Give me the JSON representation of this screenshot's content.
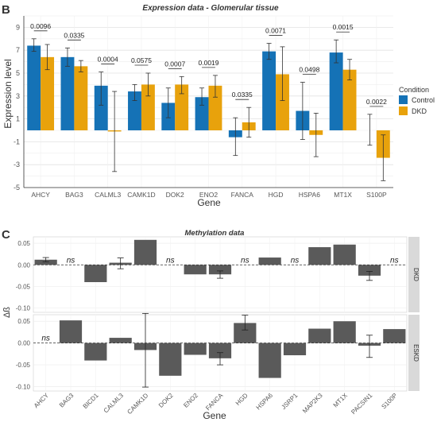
{
  "panels": {
    "b": {
      "letter": "B"
    },
    "c": {
      "letter": "C"
    }
  },
  "legend": {
    "title": "Condition",
    "items": [
      {
        "label": "Control",
        "color": "#1572B6"
      },
      {
        "label": "DKD",
        "color": "#E8A20C"
      }
    ]
  },
  "chart_data": [
    {
      "type": "bar",
      "title": "Expression data - Glomerular tissue",
      "xlabel": "Gene",
      "ylabel": "Expression level",
      "categories": [
        "AHCY",
        "BAG3",
        "CALML3",
        "CAMK1D",
        "DOK2",
        "ENO2",
        "FANCA",
        "HGD",
        "HSPA6",
        "MT1X",
        "S100P"
      ],
      "series": [
        {
          "name": "Control",
          "color": "#1572B6",
          "values": [
            7.4,
            6.4,
            3.9,
            3.4,
            2.4,
            2.9,
            -0.6,
            6.9,
            1.7,
            6.8,
            0
          ],
          "err_low": [
            6.9,
            5.6,
            2.2,
            2.6,
            1.1,
            2.2,
            -2.2,
            6.2,
            -0.8,
            5.9,
            -1.3
          ],
          "err_high": [
            8.0,
            7.2,
            5.1,
            4.0,
            3.7,
            3.7,
            1.1,
            7.6,
            4.2,
            7.9,
            1.4
          ]
        },
        {
          "name": "DKD",
          "color": "#E8A20C",
          "values": [
            6.4,
            5.6,
            -0.1,
            4.0,
            4.0,
            3.9,
            0.7,
            4.9,
            -0.4,
            5.3,
            -2.4
          ],
          "err_low": [
            5.3,
            5.1,
            -3.6,
            3.0,
            3.2,
            2.9,
            -0.6,
            2.6,
            -2.3,
            4.4,
            -4.4
          ],
          "err_high": [
            7.5,
            6.1,
            3.4,
            5.0,
            4.7,
            4.8,
            2.0,
            7.3,
            1.5,
            6.2,
            -0.4
          ]
        }
      ],
      "pvalues": [
        "0.0096",
        "0.0335",
        "0.0004",
        "0.0575",
        "0.0007",
        "0.0019",
        "0.0335",
        "0.0071",
        "0.0498",
        "0.0015",
        "0.0022"
      ],
      "yticks": [
        9,
        7,
        5,
        3,
        1,
        -1,
        -3,
        -5
      ],
      "ylim": [
        -5,
        10
      ],
      "grid": true,
      "legend_position": "right"
    },
    {
      "type": "bar",
      "title": "Methylation data",
      "xlabel": "Gene",
      "ylabel": "Δß",
      "categories": [
        "AHCY",
        "BAG3",
        "BICD1",
        "CALML3",
        "CAMK1D",
        "DOK2",
        "ENO2",
        "FANCA",
        "HGD",
        "HSPA6",
        "JSRP1",
        "MAP2K3",
        "MT1X",
        "PACSIN1",
        "S100P"
      ],
      "ns_label": "ns",
      "ytick_labels": [
        "0.05",
        "0.00",
        "-0.05",
        "-0.10"
      ],
      "facets": [
        {
          "label": "DKD",
          "values": [
            0.012,
            null,
            -0.04,
            0.005,
            0.058,
            null,
            -0.022,
            -0.022,
            null,
            0.017,
            null,
            0.041,
            0.047,
            -0.025,
            null
          ],
          "err": [
            [
              0.007,
              0.017
            ],
            null,
            null,
            [
              -0.009,
              0.016
            ],
            null,
            null,
            null,
            [
              -0.031,
              -0.014
            ],
            null,
            null,
            null,
            null,
            null,
            [
              -0.036,
              -0.015
            ],
            null
          ]
        },
        {
          "label": "ESKD",
          "values": [
            null,
            0.052,
            -0.04,
            0.012,
            -0.016,
            -0.075,
            -0.027,
            -0.035,
            0.046,
            -0.08,
            -0.028,
            0.033,
            0.05,
            -0.006,
            0.032
          ],
          "err": [
            null,
            null,
            null,
            null,
            [
              -0.101,
              0.068
            ],
            null,
            null,
            [
              -0.05,
              -0.022
            ],
            [
              0.03,
              0.064
            ],
            null,
            null,
            null,
            null,
            [
              -0.033,
              0.018
            ],
            null
          ]
        }
      ],
      "ylim": [
        -0.11,
        0.065
      ],
      "grid": true
    }
  ]
}
